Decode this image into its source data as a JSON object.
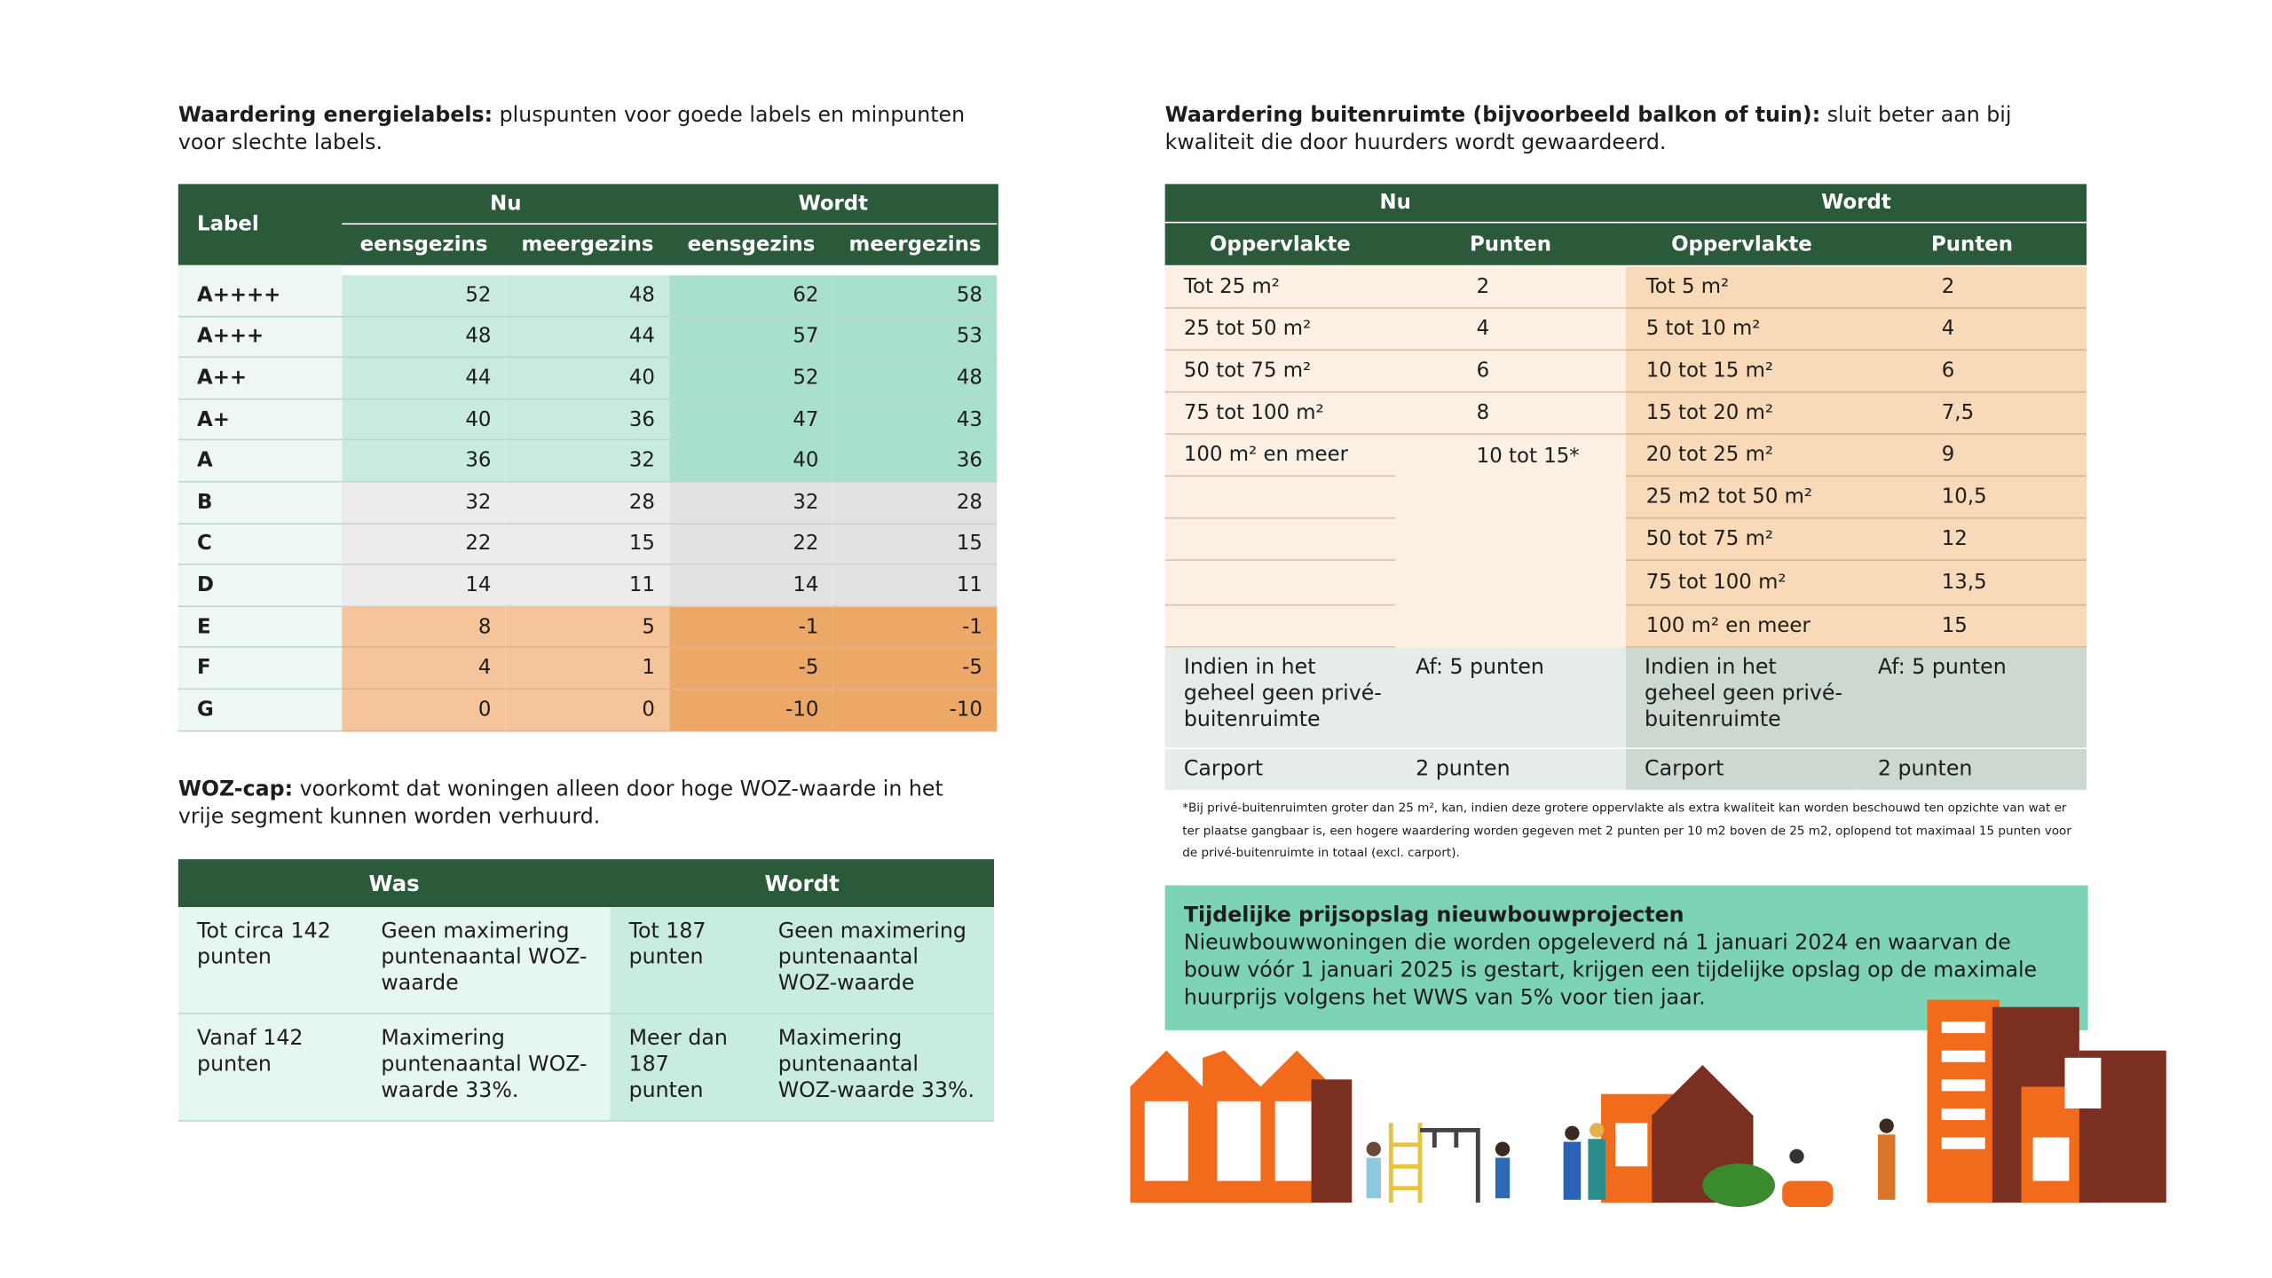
{
  "energielabels": {
    "heading_bold": "Waardering energielabels:",
    "heading_text": " pluspunten voor goede labels en minpunten voor slechte labels.",
    "table": {
      "label_header": "Label",
      "group_headers": [
        "Nu",
        "Wordt"
      ],
      "sub_headers": [
        "eensgezins",
        "meergezins",
        "eensgezins",
        "meergezins"
      ],
      "rows": [
        {
          "label": "A++++",
          "values": [
            52,
            48,
            62,
            58
          ]
        },
        {
          "label": "A+++",
          "values": [
            48,
            44,
            57,
            53
          ]
        },
        {
          "label": "A++",
          "values": [
            44,
            40,
            52,
            48
          ]
        },
        {
          "label": "A+",
          "values": [
            40,
            36,
            47,
            43
          ]
        },
        {
          "label": "A",
          "values": [
            36,
            32,
            40,
            36
          ]
        },
        {
          "label": "B",
          "values": [
            32,
            28,
            32,
            28
          ]
        },
        {
          "label": "C",
          "values": [
            22,
            15,
            22,
            15
          ]
        },
        {
          "label": "D",
          "values": [
            14,
            11,
            14,
            11
          ]
        },
        {
          "label": "E",
          "values": [
            8,
            5,
            -1,
            -1
          ]
        },
        {
          "label": "F",
          "values": [
            4,
            1,
            -5,
            -5
          ]
        },
        {
          "label": "G",
          "values": [
            0,
            0,
            -10,
            -10
          ]
        }
      ]
    }
  },
  "woz_cap": {
    "heading_bold": "WOZ-cap:",
    "heading_text": " voorkomt dat woningen alleen door hoge WOZ-waarde in het vrije segment kunnen worden verhuurd.",
    "table": {
      "headers": [
        "Was",
        "Wordt"
      ],
      "rows": [
        [
          "Tot circa 142 punten",
          "Geen maximering puntenaantal WOZ-waarde",
          "Tot 187 punten",
          "Geen maximering puntenaantal WOZ-waarde"
        ],
        [
          "Vanaf 142 punten",
          "Maximering puntenaantal WOZ-waarde 33%.",
          "Meer dan 187 punten",
          "Maximering puntenaantal WOZ-waarde 33%."
        ]
      ]
    }
  },
  "buitenruimte": {
    "heading_bold": "Waardering buitenruimte (bijvoorbeeld balkon of tuin):",
    "heading_text": " sluit beter aan bij kwaliteit die door huurders wordt gewaardeerd.",
    "table": {
      "group_headers": [
        "Nu",
        "Wordt"
      ],
      "sub_headers": [
        "Oppervlakte",
        "Punten",
        "Oppervlakte",
        "Punten"
      ],
      "nu_rows": [
        [
          "Tot 25 m²",
          "2"
        ],
        [
          "25 tot 50 m²",
          "4"
        ],
        [
          "50 tot 75 m²",
          "6"
        ],
        [
          "75 tot 100 m²",
          "8"
        ],
        [
          "100 m² en meer",
          "10 tot 15*"
        ]
      ],
      "wordt_rows": [
        [
          "Tot 5 m²",
          "2"
        ],
        [
          "5 tot 10 m²",
          "4"
        ],
        [
          "10 tot 15 m²",
          "6"
        ],
        [
          "15 tot 20 m²",
          "7,5"
        ],
        [
          "20 tot 25 m²",
          "9"
        ],
        [
          "25 m2 tot 50 m²",
          "10,5"
        ],
        [
          "50 tot 75 m²",
          "12"
        ],
        [
          "75 tot 100 m²",
          "13,5"
        ],
        [
          "100 m² en meer",
          "15"
        ]
      ],
      "extra_rows": [
        [
          "Indien in het geheel geen privé-buitenruimte",
          "Af: 5 punten",
          "Indien in het geheel geen privé-buitenruimte",
          "Af: 5 punten"
        ],
        [
          "Carport",
          "2 punten",
          "Carport",
          "2 punten"
        ]
      ]
    },
    "footnote": "*Bij privé-buitenruimten groter dan 25 m², kan, indien deze grotere oppervlakte als extra kwaliteit kan worden beschouwd ten opzichte van wat er ter plaatse gangbaar is, een hogere waardering worden gegeven met 2 punten per 10 m2 boven de 25 m2, oplopend tot maximaal 15 punten voor de privé-buitenruimte in totaal (excl. carport)."
  },
  "prijsopslag": {
    "title": "Tijdelijke prijsopslag nieuwbouwprojecten",
    "text": "Nieuwbouwwoningen die worden opgeleverd ná 1 januari 2024 en waarvan de bouw vóór 1 januari 2025 is gestart, krijgen een tijdelijke opslag op de maximale huurprijs volgens het WWS van 5% voor tien jaar."
  }
}
